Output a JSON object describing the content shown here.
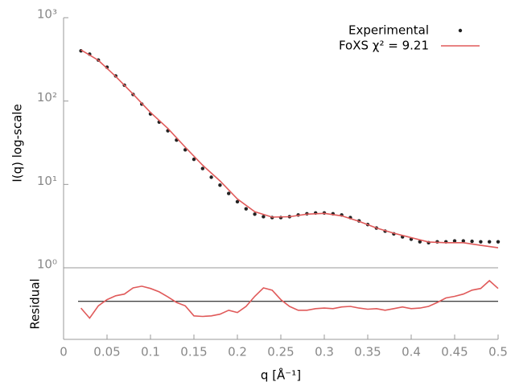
{
  "chart_data": [
    {
      "type": "line",
      "ylabel": "I(q) log-scale",
      "log_y": true,
      "legend": "top-right",
      "ylim": [
        1,
        1000
      ],
      "yticks": [
        {
          "value": 1,
          "label": "10⁰"
        },
        {
          "value": 10,
          "label": "10¹"
        },
        {
          "value": 100,
          "label": "10²"
        },
        {
          "value": 1000,
          "label": "10³"
        }
      ],
      "series": [
        {
          "name": "Experimental",
          "color": "#222222",
          "mode": "markers",
          "x": [
            0.02,
            0.03,
            0.04,
            0.05,
            0.06,
            0.07,
            0.08,
            0.09,
            0.1,
            0.11,
            0.12,
            0.13,
            0.14,
            0.15,
            0.16,
            0.17,
            0.18,
            0.19,
            0.2,
            0.21,
            0.22,
            0.23,
            0.24,
            0.25,
            0.26,
            0.27,
            0.28,
            0.29,
            0.3,
            0.31,
            0.32,
            0.33,
            0.34,
            0.35,
            0.36,
            0.37,
            0.38,
            0.39,
            0.4,
            0.41,
            0.42,
            0.43,
            0.44,
            0.45,
            0.46,
            0.47,
            0.48,
            0.49,
            0.5
          ],
          "values": [
            400,
            365,
            310,
            255,
            200,
            155,
            120,
            92,
            70,
            56,
            44,
            34,
            26,
            20,
            15.5,
            12.2,
            9.8,
            7.8,
            6.2,
            5.1,
            4.4,
            4.1,
            4.0,
            4.0,
            4.1,
            4.3,
            4.45,
            4.55,
            4.55,
            4.45,
            4.3,
            4.0,
            3.65,
            3.3,
            3.0,
            2.75,
            2.55,
            2.35,
            2.2,
            2.05,
            2.0,
            2.05,
            2.05,
            2.1,
            2.1,
            2.08,
            2.05,
            2.05,
            2.05
          ]
        },
        {
          "name": "FoXS χ² = 9.21",
          "color": "#e05a5a",
          "mode": "lines",
          "x": [
            0.02,
            0.04,
            0.06,
            0.08,
            0.1,
            0.12,
            0.14,
            0.16,
            0.18,
            0.2,
            0.22,
            0.24,
            0.26,
            0.28,
            0.3,
            0.32,
            0.34,
            0.36,
            0.38,
            0.4,
            0.42,
            0.44,
            0.46,
            0.48,
            0.5
          ],
          "values": [
            410,
            308,
            197,
            121,
            73,
            47,
            28,
            17,
            11,
            6.7,
            4.7,
            4.05,
            4.1,
            4.4,
            4.5,
            4.2,
            3.6,
            3.0,
            2.6,
            2.3,
            2.04,
            2.0,
            2.0,
            1.86,
            1.74
          ]
        }
      ]
    },
    {
      "type": "line",
      "ylabel": "Residual",
      "ylim": [
        -3.4,
        3
      ],
      "reference_line": 0,
      "xlabel": "q [Å⁻¹]",
      "xlim": [
        0,
        0.5
      ],
      "xticks": [
        0,
        0.05,
        0.1,
        0.15,
        0.2,
        0.25,
        0.3,
        0.35,
        0.4,
        0.45,
        0.5
      ],
      "series": [
        {
          "color": "#e05a5a",
          "mode": "lines",
          "x": [
            0.02,
            0.03,
            0.04,
            0.05,
            0.06,
            0.07,
            0.08,
            0.09,
            0.1,
            0.11,
            0.12,
            0.13,
            0.14,
            0.15,
            0.16,
            0.17,
            0.18,
            0.19,
            0.2,
            0.21,
            0.22,
            0.23,
            0.24,
            0.25,
            0.26,
            0.27,
            0.28,
            0.29,
            0.3,
            0.31,
            0.32,
            0.33,
            0.34,
            0.35,
            0.36,
            0.37,
            0.38,
            0.39,
            0.4,
            0.41,
            0.42,
            0.43,
            0.44,
            0.45,
            0.46,
            0.47,
            0.48,
            0.49,
            0.5
          ],
          "values": [
            -0.6,
            -1.5,
            -0.4,
            0.15,
            0.5,
            0.65,
            1.2,
            1.35,
            1.15,
            0.85,
            0.4,
            -0.1,
            -0.4,
            -1.3,
            -1.35,
            -1.3,
            -1.15,
            -0.8,
            -1.0,
            -0.45,
            0.45,
            1.2,
            1.0,
            0.15,
            -0.45,
            -0.8,
            -0.8,
            -0.65,
            -0.6,
            -0.65,
            -0.5,
            -0.45,
            -0.6,
            -0.7,
            -0.65,
            -0.8,
            -0.65,
            -0.5,
            -0.65,
            -0.6,
            -0.45,
            -0.1,
            0.3,
            0.45,
            0.65,
            1.0,
            1.15,
            1.85,
            1.15
          ]
        }
      ]
    }
  ]
}
